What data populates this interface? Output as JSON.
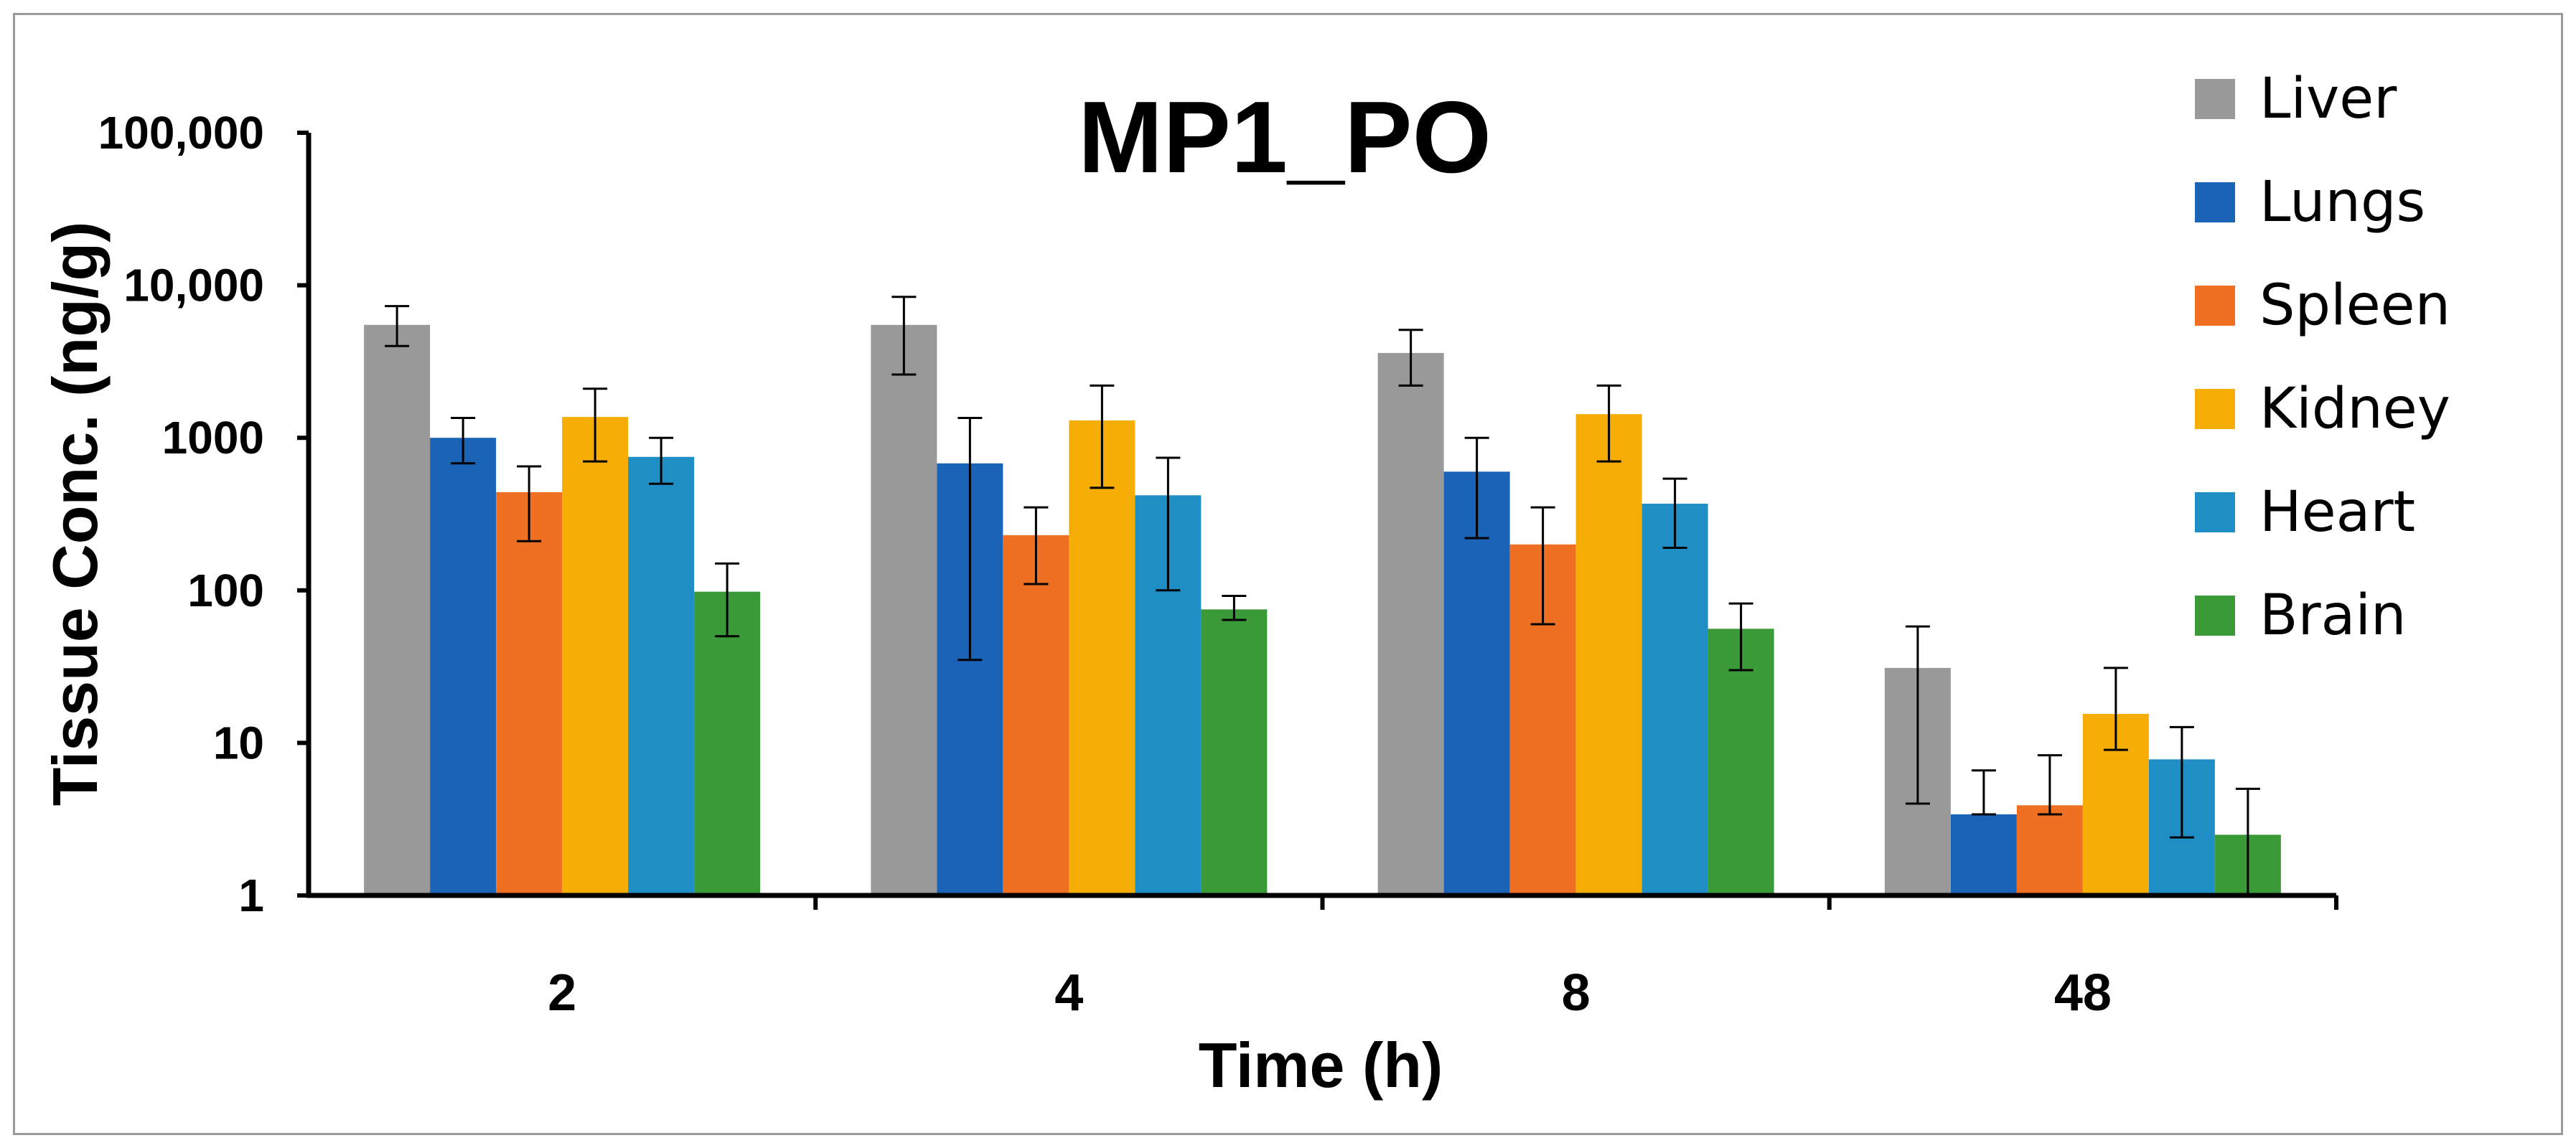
{
  "chart_data": {
    "type": "bar",
    "title": "MP1_PO",
    "xlabel": "Time (h)",
    "ylabel": "Tissue  Conc. (ng/g)",
    "yscale": "log",
    "ylim": [
      1,
      100000
    ],
    "ytick_labels": [
      "1",
      "10",
      "100",
      "1000",
      "10,000",
      "100,000"
    ],
    "categories": [
      "2",
      "4",
      "8",
      "48"
    ],
    "legend_position": "right",
    "series": [
      {
        "name": "Liver",
        "color": "#999999",
        "values": [
          5500,
          5500,
          3600,
          31
        ],
        "err_low": [
          4000,
          2600,
          2200,
          4
        ],
        "err_high": [
          7300,
          8400,
          5100,
          58
        ]
      },
      {
        "name": "Lungs",
        "color": "#1a63b6",
        "values": [
          1000,
          680,
          600,
          3.4
        ],
        "err_low": [
          680,
          35,
          220,
          3.4
        ],
        "err_high": [
          1350,
          1350,
          1000,
          6.6
        ]
      },
      {
        "name": "Spleen",
        "color": "#ef7022",
        "values": [
          440,
          230,
          200,
          3.9
        ],
        "err_low": [
          210,
          110,
          60,
          3.4
        ],
        "err_high": [
          650,
          350,
          350,
          8.3
        ]
      },
      {
        "name": "Kidney",
        "color": "#f6ad06",
        "values": [
          1370,
          1300,
          1430,
          15.5
        ],
        "err_low": [
          700,
          470,
          700,
          9
        ],
        "err_high": [
          2100,
          2200,
          2200,
          31
        ]
      },
      {
        "name": "Heart",
        "color": "#1f8ec5",
        "values": [
          750,
          420,
          370,
          7.8
        ],
        "err_low": [
          500,
          100,
          190,
          2.4
        ],
        "err_high": [
          1000,
          740,
          540,
          12.7
        ]
      },
      {
        "name": "Brain",
        "color": "#3a9a38",
        "values": [
          98,
          75,
          56,
          2.5
        ],
        "err_low": [
          50,
          64,
          30,
          1
        ],
        "err_high": [
          150,
          92,
          82,
          5
        ]
      }
    ]
  }
}
